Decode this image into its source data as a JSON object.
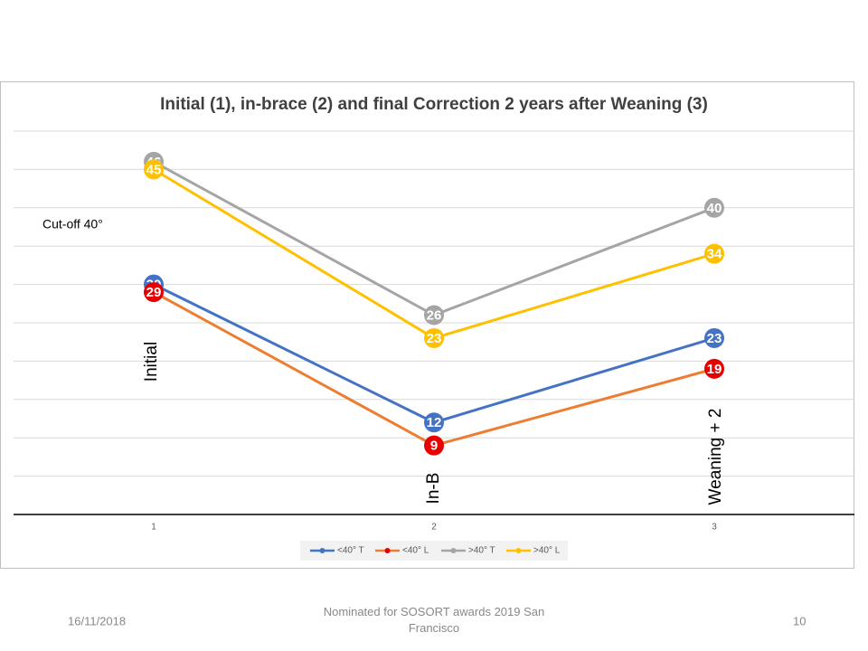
{
  "chart_data": {
    "type": "line",
    "title": "Initial (1), in-brace (2) and final Correction 2 years after Weaning (3)",
    "x": [
      1,
      2,
      3
    ],
    "xlim": [
      0.5,
      3.5
    ],
    "xticks": [
      1,
      2,
      3
    ],
    "ylim": [
      0,
      50
    ],
    "yticks": [
      0,
      5,
      10,
      15,
      20,
      25,
      30,
      35,
      40,
      45,
      50
    ],
    "grid": true,
    "legend": "bottom",
    "series": [
      {
        "name": "<40° T",
        "color": "#4472c4",
        "marker_color": "#4472c4",
        "values": [
          30,
          12,
          23
        ]
      },
      {
        "name": "<40° L",
        "color": "#ed7d31",
        "marker_color": "#e60000",
        "values": [
          29,
          9,
          19
        ]
      },
      {
        "name": ">40° T",
        "color": "#a5a5a5",
        "marker_color": "#a5a5a5",
        "values": [
          46,
          26,
          40
        ]
      },
      {
        "name": ">40° L",
        "color": "#ffc000",
        "marker_color": "#ffc000",
        "values": [
          45,
          23,
          34
        ]
      }
    ],
    "annotations": [
      "Cut-off 40°",
      "Initial",
      "In-B",
      "Weaning + 2"
    ]
  },
  "footer": {
    "date": "16/11/2018",
    "note": "Nominated for SOSORT awards 2019 San Francisco",
    "page": "10"
  }
}
